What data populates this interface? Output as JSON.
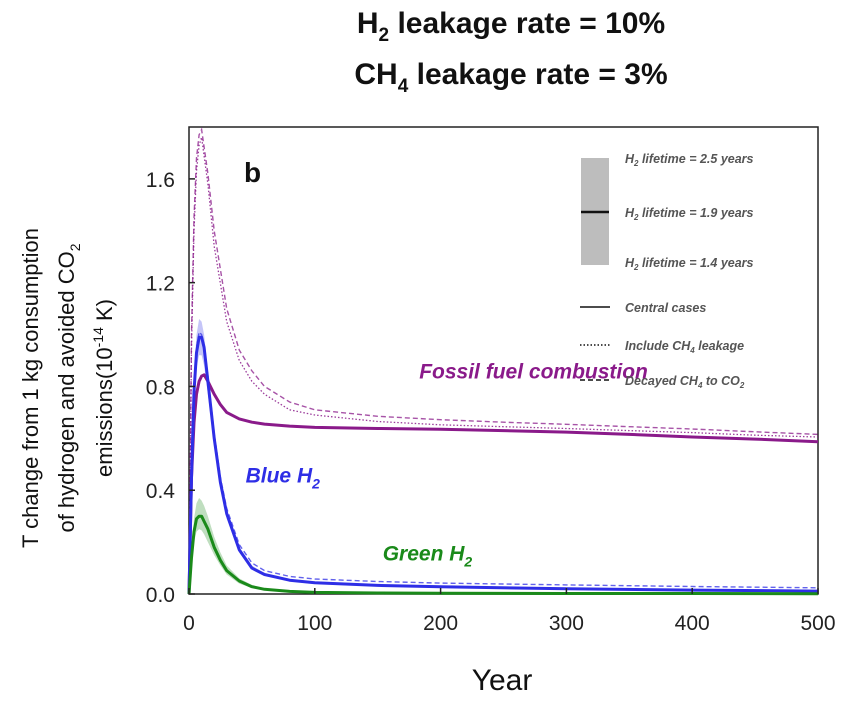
{
  "title": {
    "line1": {
      "prefix": "H",
      "sub": "2",
      "suffix": " leakage rate = 10%"
    },
    "line2": {
      "prefix": "CH",
      "sub": "4",
      "suffix": " leakage rate = 3%"
    }
  },
  "chart_data": {
    "type": "line",
    "panel_label": "b",
    "xlabel": "Year",
    "ylabel": {
      "line1": "T change from 1 kg consumption",
      "line2_prefix": "of hydrogen and avoided CO",
      "line2_sub": "2",
      "line3_prefix": "emissions(10",
      "line3_sup": "-14",
      "line3_suffix": " K)"
    },
    "xlim": [
      0,
      500
    ],
    "ylim": [
      0,
      1.8
    ],
    "xticks": [
      0,
      100,
      200,
      300,
      400,
      500
    ],
    "yticks": [
      0.0,
      0.4,
      0.8,
      1.2,
      1.6
    ],
    "ytick_labels": [
      "0.0",
      "0.4",
      "0.8",
      "1.2",
      "1.6"
    ],
    "grid": false,
    "legend": {
      "position": "top-right",
      "lifetime_entries": [
        {
          "prefix": "H",
          "sub": "2",
          "suffix": " lifetime = 2.5 years"
        },
        {
          "prefix": "H",
          "sub": "2",
          "suffix": " lifetime = 1.9 years"
        },
        {
          "prefix": "H",
          "sub": "2",
          "suffix": " lifetime = 1.4 years"
        }
      ],
      "style_entries": [
        {
          "style": "solid",
          "prefix": "Central cases",
          "sub": "",
          "suffix": ""
        },
        {
          "style": "dotted",
          "prefix": "Include CH",
          "sub": "4",
          "suffix": " leakage"
        },
        {
          "style": "dashed",
          "prefix": "Decayed CH",
          "sub": "4",
          "suffix": " to CO",
          "sub2": "2"
        }
      ]
    },
    "series": [
      {
        "name": "Fossil fuel combustion",
        "label": {
          "prefix": "Fossil fuel combustion",
          "sub": ""
        },
        "color": "#8a1a8a",
        "central": {
          "x": [
            0,
            2,
            4,
            6,
            8,
            10,
            12,
            15,
            20,
            25,
            30,
            40,
            50,
            60,
            80,
            100,
            150,
            200,
            250,
            300,
            350,
            400,
            450,
            500
          ],
          "y": [
            0,
            0.45,
            0.66,
            0.77,
            0.82,
            0.84,
            0.845,
            0.82,
            0.77,
            0.73,
            0.7,
            0.675,
            0.662,
            0.655,
            0.647,
            0.642,
            0.638,
            0.635,
            0.63,
            0.624,
            0.615,
            0.605,
            0.597,
            0.587
          ]
        },
        "dotted": {
          "x": [
            0,
            2,
            4,
            6,
            8,
            10,
            15,
            20,
            30,
            40,
            50,
            60,
            80,
            100,
            150,
            200,
            250,
            300,
            350,
            400,
            450,
            500
          ],
          "y": [
            0,
            0.95,
            1.4,
            1.63,
            1.73,
            1.76,
            1.58,
            1.34,
            1.05,
            0.9,
            0.82,
            0.77,
            0.71,
            0.69,
            0.665,
            0.652,
            0.645,
            0.638,
            0.63,
            0.622,
            0.612,
            0.605
          ]
        },
        "dashed": {
          "x": [
            0,
            2,
            4,
            6,
            8,
            10,
            15,
            20,
            30,
            40,
            50,
            60,
            80,
            100,
            150,
            200,
            250,
            300,
            350,
            400,
            450,
            500
          ],
          "y": [
            0,
            1.0,
            1.45,
            1.68,
            1.77,
            1.79,
            1.62,
            1.4,
            1.1,
            0.94,
            0.86,
            0.8,
            0.74,
            0.71,
            0.685,
            0.672,
            0.662,
            0.654,
            0.645,
            0.636,
            0.625,
            0.615
          ]
        }
      },
      {
        "name": "Blue H2",
        "label": {
          "prefix": "Blue H",
          "sub": "2"
        },
        "color": "#2e2ee6",
        "band_upper": {
          "x": [
            0,
            2,
            4,
            6,
            8,
            10,
            12,
            15,
            20,
            25,
            30,
            40,
            50,
            60,
            80,
            100,
            150,
            200,
            300,
            400,
            500
          ],
          "y": [
            0,
            0.5,
            0.85,
            1.0,
            1.06,
            1.05,
            1.0,
            0.86,
            0.64,
            0.46,
            0.33,
            0.18,
            0.11,
            0.08,
            0.055,
            0.045,
            0.035,
            0.03,
            0.022,
            0.016,
            0.012
          ]
        },
        "band_lower": {
          "x": [
            0,
            2,
            4,
            6,
            8,
            10,
            12,
            15,
            20,
            25,
            30,
            40,
            50,
            60,
            80,
            100,
            150,
            200,
            300,
            400,
            500
          ],
          "y": [
            0,
            0.4,
            0.72,
            0.87,
            0.92,
            0.92,
            0.88,
            0.77,
            0.57,
            0.41,
            0.29,
            0.16,
            0.095,
            0.07,
            0.05,
            0.04,
            0.031,
            0.026,
            0.019,
            0.014,
            0.01
          ]
        },
        "central": {
          "x": [
            0,
            2,
            4,
            6,
            8,
            10,
            12,
            15,
            20,
            25,
            30,
            40,
            50,
            60,
            80,
            100,
            150,
            200,
            300,
            400,
            500
          ],
          "y": [
            0,
            0.45,
            0.78,
            0.93,
            0.99,
            0.99,
            0.95,
            0.82,
            0.6,
            0.43,
            0.31,
            0.17,
            0.1,
            0.075,
            0.053,
            0.043,
            0.033,
            0.028,
            0.02,
            0.015,
            0.011
          ]
        },
        "dashed": {
          "x": [
            0,
            2,
            4,
            6,
            8,
            10,
            12,
            15,
            20,
            25,
            30,
            40,
            50,
            60,
            80,
            100,
            150,
            200,
            300,
            400,
            500
          ],
          "y": [
            0,
            0.46,
            0.8,
            0.95,
            1.01,
            1.0,
            0.96,
            0.84,
            0.62,
            0.45,
            0.33,
            0.19,
            0.12,
            0.09,
            0.068,
            0.058,
            0.048,
            0.042,
            0.035,
            0.029,
            0.024
          ]
        }
      },
      {
        "name": "Green H2",
        "label": {
          "prefix": "Green H",
          "sub": "2"
        },
        "color": "#1a8a1a",
        "band_upper": {
          "x": [
            0,
            2,
            4,
            6,
            8,
            10,
            12,
            15,
            20,
            25,
            30,
            40,
            50,
            60,
            80,
            100,
            150,
            200,
            300,
            400,
            500
          ],
          "y": [
            0,
            0.17,
            0.29,
            0.35,
            0.37,
            0.36,
            0.34,
            0.3,
            0.22,
            0.16,
            0.11,
            0.06,
            0.035,
            0.022,
            0.012,
            0.008,
            0.005,
            0.004,
            0.003,
            0.002,
            0.002
          ]
        },
        "band_lower": {
          "x": [
            0,
            2,
            4,
            6,
            8,
            10,
            12,
            15,
            20,
            25,
            30,
            40,
            50,
            60,
            80,
            100,
            150,
            200,
            300,
            400,
            500
          ],
          "y": [
            0,
            0.12,
            0.2,
            0.24,
            0.25,
            0.245,
            0.23,
            0.2,
            0.15,
            0.11,
            0.075,
            0.04,
            0.023,
            0.015,
            0.008,
            0.005,
            0.003,
            0.002,
            0.002,
            0.001,
            0.001
          ]
        },
        "central": {
          "x": [
            0,
            2,
            4,
            6,
            8,
            10,
            12,
            15,
            20,
            25,
            30,
            40,
            50,
            60,
            80,
            100,
            150,
            200,
            300,
            400,
            500
          ],
          "y": [
            0,
            0.14,
            0.24,
            0.29,
            0.3,
            0.3,
            0.28,
            0.25,
            0.18,
            0.13,
            0.09,
            0.05,
            0.028,
            0.018,
            0.01,
            0.006,
            0.004,
            0.003,
            0.002,
            0.002,
            0.001
          ]
        }
      }
    ],
    "series_label_anchors": [
      {
        "series": "Fossil fuel combustion",
        "x": 183,
        "y": 0.83
      },
      {
        "series": "Blue H2",
        "x": 45,
        "y": 0.43
      },
      {
        "series": "Green H2",
        "x": 154,
        "y": 0.13
      }
    ],
    "legend_colors": {
      "band": "#bdbdbd",
      "line": "#111111",
      "text": "#555555"
    }
  }
}
